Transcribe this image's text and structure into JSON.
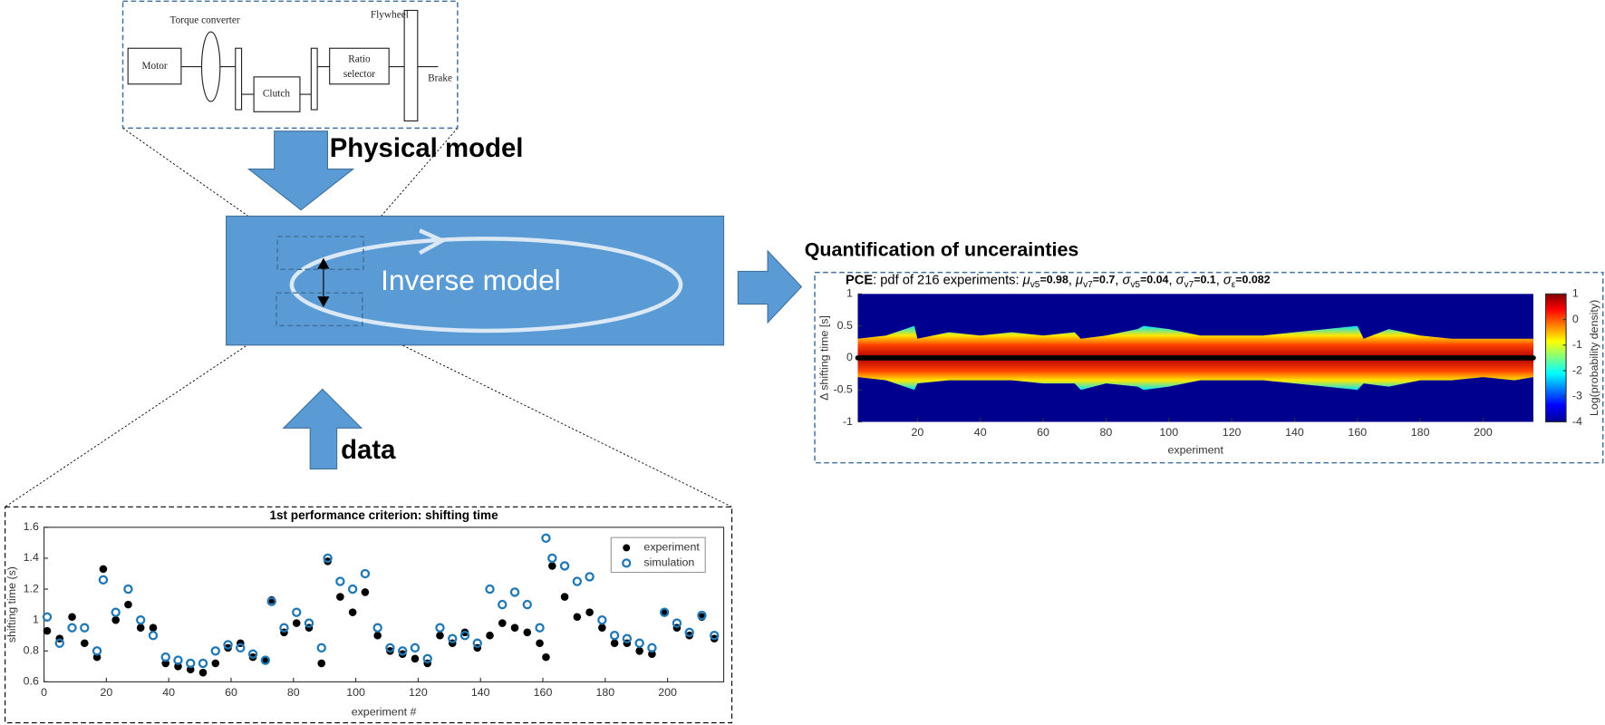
{
  "diagram": {
    "drivetrain": {
      "torque_converter": "Torque converter",
      "flywheel": "Flywheel",
      "motor": "Motor",
      "clutch": "Clutch",
      "ratio_selector": [
        "Ratio",
        "selector"
      ],
      "brake": "Brake"
    },
    "physical_model": "Physical model",
    "inverse_model": "Inverse model",
    "data": "data",
    "quantification": "Quantification of uncerainties"
  },
  "chart_data": [
    {
      "type": "scatter",
      "title": "1st performance criterion: shifting time",
      "x_label": "experiment #",
      "y_label": "shifting time (s)",
      "xlim": [
        0,
        218
      ],
      "xticks": [
        0,
        20,
        40,
        60,
        80,
        100,
        120,
        140,
        160,
        180,
        200
      ],
      "ylim": [
        0.6,
        1.6
      ],
      "yticks": [
        0.6,
        0.8,
        1,
        1.2,
        1.4,
        1.6
      ],
      "legend": "upper right",
      "x": [
        1,
        5,
        9,
        13,
        17,
        19,
        23,
        27,
        31,
        35,
        39,
        43,
        47,
        51,
        55,
        59,
        63,
        67,
        71,
        73,
        77,
        81,
        85,
        89,
        91,
        95,
        99,
        103,
        107,
        111,
        115,
        119,
        123,
        127,
        131,
        135,
        139,
        143,
        147,
        151,
        155,
        159,
        161,
        163,
        167,
        171,
        175,
        179,
        183,
        187,
        191,
        195,
        199,
        203,
        207,
        211,
        215
      ],
      "series": [
        {
          "name": "experiment",
          "color": "#000000",
          "marker": "filled",
          "values": [
            0.93,
            0.88,
            1.02,
            0.85,
            0.76,
            1.33,
            1.0,
            1.1,
            0.95,
            0.95,
            0.72,
            0.7,
            0.68,
            0.66,
            0.72,
            0.82,
            0.85,
            0.76,
            0.74,
            1.13,
            0.92,
            0.98,
            0.95,
            0.72,
            1.38,
            1.15,
            1.05,
            1.18,
            0.9,
            0.8,
            0.78,
            0.75,
            0.72,
            0.9,
            0.85,
            0.92,
            0.82,
            0.9,
            0.98,
            0.95,
            0.92,
            0.85,
            0.76,
            1.35,
            1.15,
            1.02,
            1.05,
            0.95,
            0.85,
            0.85,
            0.8,
            0.78,
            1.05,
            0.95,
            0.9,
            1.02,
            0.88
          ]
        },
        {
          "name": "simulation",
          "color": "#1f77b4",
          "marker": "open",
          "values": [
            1.02,
            0.85,
            0.95,
            0.95,
            0.8,
            1.26,
            1.05,
            1.2,
            1.0,
            0.9,
            0.76,
            0.74,
            0.72,
            0.72,
            0.8,
            0.84,
            0.82,
            0.78,
            0.74,
            1.12,
            0.95,
            1.05,
            0.98,
            0.82,
            1.4,
            1.25,
            1.2,
            1.3,
            0.95,
            0.82,
            0.8,
            0.82,
            0.75,
            0.95,
            0.88,
            0.9,
            0.85,
            1.2,
            1.1,
            1.18,
            1.1,
            0.95,
            1.53,
            1.4,
            1.35,
            1.25,
            1.28,
            1.0,
            0.9,
            0.88,
            0.85,
            0.82,
            1.05,
            0.98,
            0.92,
            1.03,
            0.9
          ]
        }
      ]
    },
    {
      "type": "density",
      "title_bold": "PCE",
      "title": ": pdf of 216 experiments: ",
      "params": [
        {
          "symbol": "μ",
          "sub": "v5",
          "label": "=0.98"
        },
        {
          "symbol": "μ",
          "sub": "v7",
          "label": "=0.7"
        },
        {
          "symbol": "σ",
          "sub": "v5",
          "label": "=0.04"
        },
        {
          "symbol": "σ",
          "sub": "v7",
          "label": "=0.1"
        },
        {
          "symbol": "σ",
          "sub": "ε",
          "label": "=0.082"
        }
      ],
      "x_label": "experiment",
      "y_label": "Δ shifting time [s]",
      "colorbar_label": "Log(probability density)",
      "xlim": [
        1,
        216
      ],
      "xticks": [
        20,
        40,
        60,
        80,
        100,
        120,
        140,
        160,
        180,
        200
      ],
      "ylim": [
        -1,
        1
      ],
      "yticks": [
        -1,
        -0.5,
        0,
        0.5,
        1
      ],
      "clim": [
        -4,
        1
      ],
      "cticks": [
        1,
        0,
        -1,
        -2,
        -3,
        -4
      ],
      "x": [
        1,
        10,
        19,
        20,
        30,
        40,
        50,
        60,
        70,
        72,
        80,
        90,
        92,
        100,
        110,
        120,
        130,
        140,
        150,
        160,
        162,
        170,
        180,
        190,
        200,
        210,
        216
      ],
      "upper": [
        0.3,
        0.35,
        0.5,
        0.3,
        0.4,
        0.35,
        0.4,
        0.35,
        0.4,
        0.3,
        0.35,
        0.45,
        0.5,
        0.45,
        0.35,
        0.35,
        0.35,
        0.4,
        0.45,
        0.5,
        0.3,
        0.45,
        0.35,
        0.3,
        0.3,
        0.3,
        0.3
      ],
      "lower": [
        -0.3,
        -0.35,
        -0.5,
        -0.4,
        -0.35,
        -0.35,
        -0.35,
        -0.4,
        -0.4,
        -0.5,
        -0.4,
        -0.45,
        -0.5,
        -0.45,
        -0.35,
        -0.35,
        -0.35,
        -0.4,
        -0.45,
        -0.5,
        -0.4,
        -0.45,
        -0.35,
        -0.35,
        -0.3,
        -0.35,
        -0.3
      ],
      "mean": 0
    }
  ]
}
